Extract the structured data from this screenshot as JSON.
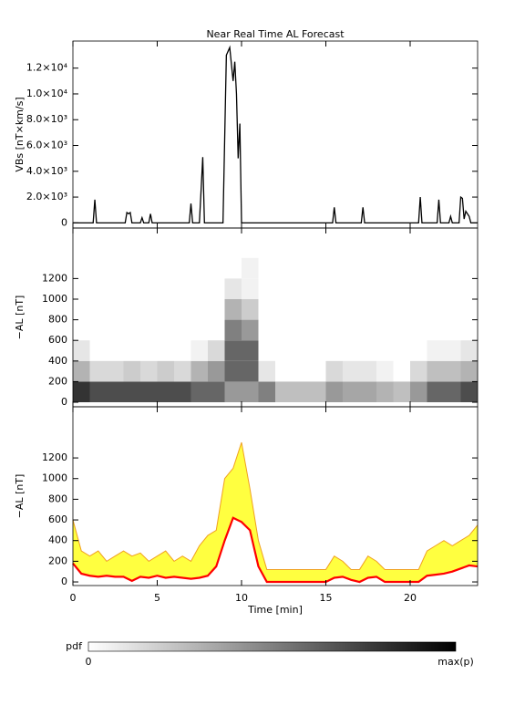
{
  "chart_data": [
    {
      "type": "line",
      "title": "Near Real Time AL Forecast",
      "ylabel": "VBs [nT×km/s]",
      "xlim": [
        0,
        24
      ],
      "ylim": [
        -400,
        14100
      ],
      "yticks": [
        0,
        {
          "value": 2000,
          "label": "2.0×10³"
        },
        {
          "value": 4000,
          "label": "4.0×10³"
        },
        {
          "value": 6000,
          "label": "6.0×10³"
        },
        {
          "value": 8000,
          "label": "8.0×10³"
        },
        {
          "value": 10000,
          "label": "1.0×10⁴"
        },
        {
          "value": 12000,
          "label": "1.2×10⁴"
        }
      ],
      "x": [
        0,
        1.2,
        1.3,
        1.4,
        3.1,
        3.2,
        3.3,
        3.4,
        3.5,
        4.0,
        4.1,
        4.2,
        4.5,
        4.6,
        4.7,
        6.9,
        7.0,
        7.1,
        7.5,
        7.6,
        7.7,
        7.8,
        8.9,
        9.1,
        9.3,
        9.5,
        9.6,
        9.7,
        9.8,
        9.9,
        10.0,
        15.4,
        15.5,
        15.6,
        17.1,
        17.2,
        17.3,
        20.5,
        20.6,
        20.7,
        21.6,
        21.7,
        21.8,
        22.3,
        22.4,
        22.5,
        22.9,
        23.0,
        23.1,
        23.2,
        23.3,
        23.5,
        23.6,
        24
      ],
      "series": [
        {
          "color": "#000000",
          "values": [
            0,
            0,
            1800,
            0,
            0,
            800,
            700,
            800,
            0,
            0,
            400,
            0,
            0,
            700,
            0,
            0,
            1500,
            0,
            0,
            2500,
            5100,
            0,
            0,
            13000,
            13600,
            11000,
            12500,
            10000,
            5000,
            7700,
            0,
            0,
            1200,
            0,
            0,
            1200,
            0,
            0,
            2000,
            0,
            0,
            1800,
            0,
            0,
            500,
            0,
            0,
            2000,
            1900,
            300,
            900,
            500,
            0,
            0
          ]
        }
      ]
    },
    {
      "type": "heatmap",
      "ylabel": "−AL [nT]",
      "xlim": [
        0,
        24
      ],
      "ylim": [
        -44,
        1690
      ],
      "yticks": [
        0,
        200,
        400,
        600,
        800,
        1000,
        1200
      ],
      "x_bins": [
        0,
        1,
        2,
        3,
        4,
        5,
        6,
        7,
        8,
        9,
        10,
        11,
        12,
        13,
        14,
        15,
        16,
        17,
        18,
        19,
        20,
        21,
        22,
        23,
        24
      ],
      "y_bins": [
        0,
        200,
        400,
        600,
        800,
        1000,
        1200,
        1400
      ],
      "values": [
        [
          0.8,
          0.3,
          0.1,
          0,
          0,
          0,
          0
        ],
        [
          0.7,
          0.15,
          0,
          0,
          0,
          0,
          0
        ],
        [
          0.7,
          0.15,
          0,
          0,
          0,
          0,
          0
        ],
        [
          0.7,
          0.2,
          0,
          0,
          0,
          0,
          0
        ],
        [
          0.7,
          0.15,
          0,
          0,
          0,
          0,
          0
        ],
        [
          0.7,
          0.2,
          0,
          0,
          0,
          0,
          0
        ],
        [
          0.7,
          0.15,
          0,
          0,
          0,
          0,
          0
        ],
        [
          0.6,
          0.3,
          0.05,
          0,
          0,
          0,
          0
        ],
        [
          0.6,
          0.4,
          0.15,
          0,
          0,
          0,
          0
        ],
        [
          0.4,
          0.6,
          0.6,
          0.5,
          0.3,
          0.1,
          0
        ],
        [
          0.4,
          0.6,
          0.6,
          0.4,
          0.2,
          0.05,
          0.05
        ],
        [
          0.5,
          0.1,
          0,
          0,
          0,
          0,
          0
        ],
        [
          0.25,
          0,
          0,
          0,
          0,
          0,
          0
        ],
        [
          0.25,
          0,
          0,
          0,
          0,
          0,
          0
        ],
        [
          0.25,
          0,
          0,
          0,
          0,
          0,
          0
        ],
        [
          0.4,
          0.15,
          0,
          0,
          0,
          0,
          0
        ],
        [
          0.35,
          0.1,
          0,
          0,
          0,
          0,
          0
        ],
        [
          0.35,
          0.1,
          0,
          0,
          0,
          0,
          0
        ],
        [
          0.3,
          0.05,
          0,
          0,
          0,
          0,
          0
        ],
        [
          0.25,
          0,
          0,
          0,
          0,
          0,
          0
        ],
        [
          0.4,
          0.15,
          0,
          0,
          0,
          0,
          0
        ],
        [
          0.6,
          0.25,
          0.05,
          0,
          0,
          0,
          0
        ],
        [
          0.6,
          0.25,
          0.05,
          0,
          0,
          0,
          0
        ],
        [
          0.7,
          0.3,
          0.1,
          0,
          0,
          0,
          0
        ]
      ],
      "colorbar": {
        "label": "pdf",
        "min_label": "0",
        "max_label": "max(p)"
      }
    },
    {
      "type": "band",
      "ylabel": "−AL [nT]",
      "xlabel": "Time [min]",
      "xlim": [
        0,
        24
      ],
      "ylim": [
        -35,
        1695
      ],
      "xticks": [
        0,
        5,
        10,
        15,
        20
      ],
      "yticks": [
        0,
        200,
        400,
        600,
        800,
        1000,
        1200
      ],
      "x": [
        0,
        0.5,
        1,
        1.5,
        2,
        2.5,
        3,
        3.5,
        4,
        4.5,
        5,
        5.5,
        6,
        6.5,
        7,
        7.5,
        8,
        8.5,
        9,
        9.5,
        10,
        10.5,
        11,
        11.5,
        12,
        12.5,
        13,
        13.5,
        14,
        14.5,
        15,
        15.5,
        16,
        16.5,
        17,
        17.5,
        18,
        18.5,
        19,
        19.5,
        20,
        20.5,
        21,
        21.5,
        22,
        22.5,
        23,
        23.5,
        24
      ],
      "series": [
        {
          "color": "#f0a020",
          "fill": "#ffff40",
          "values": [
            600,
            300,
            250,
            300,
            200,
            250,
            300,
            250,
            280,
            200,
            250,
            300,
            200,
            250,
            200,
            350,
            450,
            500,
            1000,
            1100,
            1350,
            900,
            400,
            120,
            120,
            120,
            120,
            120,
            120,
            120,
            120,
            250,
            200,
            120,
            120,
            250,
            200,
            120,
            120,
            120,
            120,
            120,
            300,
            350,
            400,
            350,
            400,
            450,
            550
          ]
        },
        {
          "color": "#ff0000",
          "values": [
            180,
            80,
            60,
            50,
            60,
            50,
            50,
            10,
            50,
            40,
            60,
            40,
            50,
            40,
            30,
            40,
            60,
            150,
            400,
            620,
            580,
            500,
            150,
            0,
            0,
            0,
            0,
            0,
            0,
            0,
            0,
            40,
            50,
            20,
            0,
            40,
            50,
            0,
            0,
            0,
            0,
            0,
            60,
            70,
            80,
            100,
            130,
            160,
            150
          ]
        }
      ]
    }
  ]
}
